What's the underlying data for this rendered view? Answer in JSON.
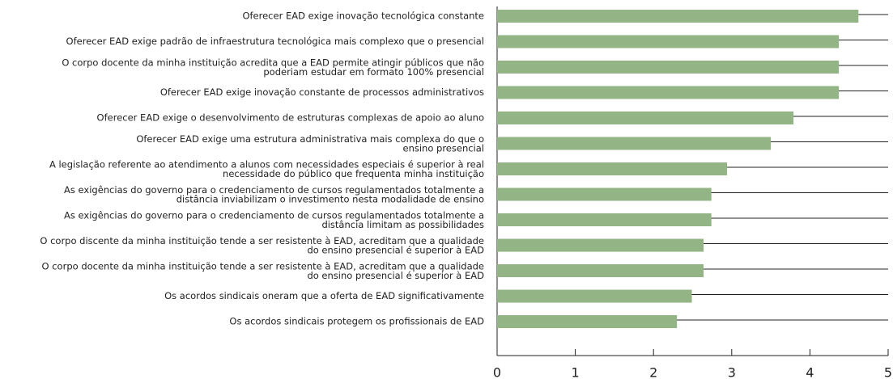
{
  "chart_data": {
    "type": "barh",
    "categories": [
      "Oferecer EAD exige inovação tecnológica constante",
      "Oferecer EAD exige padrão de infraestrutura tecnológica mais complexo que o presencial",
      "O corpo docente da minha instituição acredita que a EAD permite atingir públicos que não\npoderiam estudar em formato 100% presencial",
      "Oferecer EAD exige inovação constante de processos administrativos",
      "Oferecer EAD exige o desenvolvimento de estruturas complexas de apoio ao aluno",
      "Oferecer EAD exige uma estrutura administrativa mais complexa do que o\nensino presencial",
      "A legislação referente ao atendimento a alunos com necessidades especiais é superior à real\nnecessidade do público que frequenta minha instituição",
      "As exigências do governo para o credenciamento de cursos regulamentados totalmente a\ndistância inviabilizam o investimento nesta modalidade de ensino",
      "As exigências do governo para o credenciamento de cursos regulamentados totalmente a\ndistância limitam as possibilidades",
      "O corpo discente da minha instituição tende a ser resistente à EAD, acreditam que a qualidade\ndo ensino presencial é superior à EAD",
      "O corpo docente da minha instituição tende a ser resistente à EAD, acreditam que a qualidade\ndo ensino presencial é superior à EAD",
      "Os acordos sindicais oneram que a oferta de EAD significativamente",
      "Os acordos sindicais protegem os profissionais de EAD"
    ],
    "values": [
      4.62,
      4.37,
      4.37,
      4.37,
      3.79,
      3.5,
      2.94,
      2.74,
      2.74,
      2.64,
      2.64,
      2.49,
      2.3
    ],
    "color": "#93b484",
    "xlim": [
      0,
      5
    ],
    "xticks": [
      0,
      1,
      2,
      3,
      4,
      5
    ]
  }
}
